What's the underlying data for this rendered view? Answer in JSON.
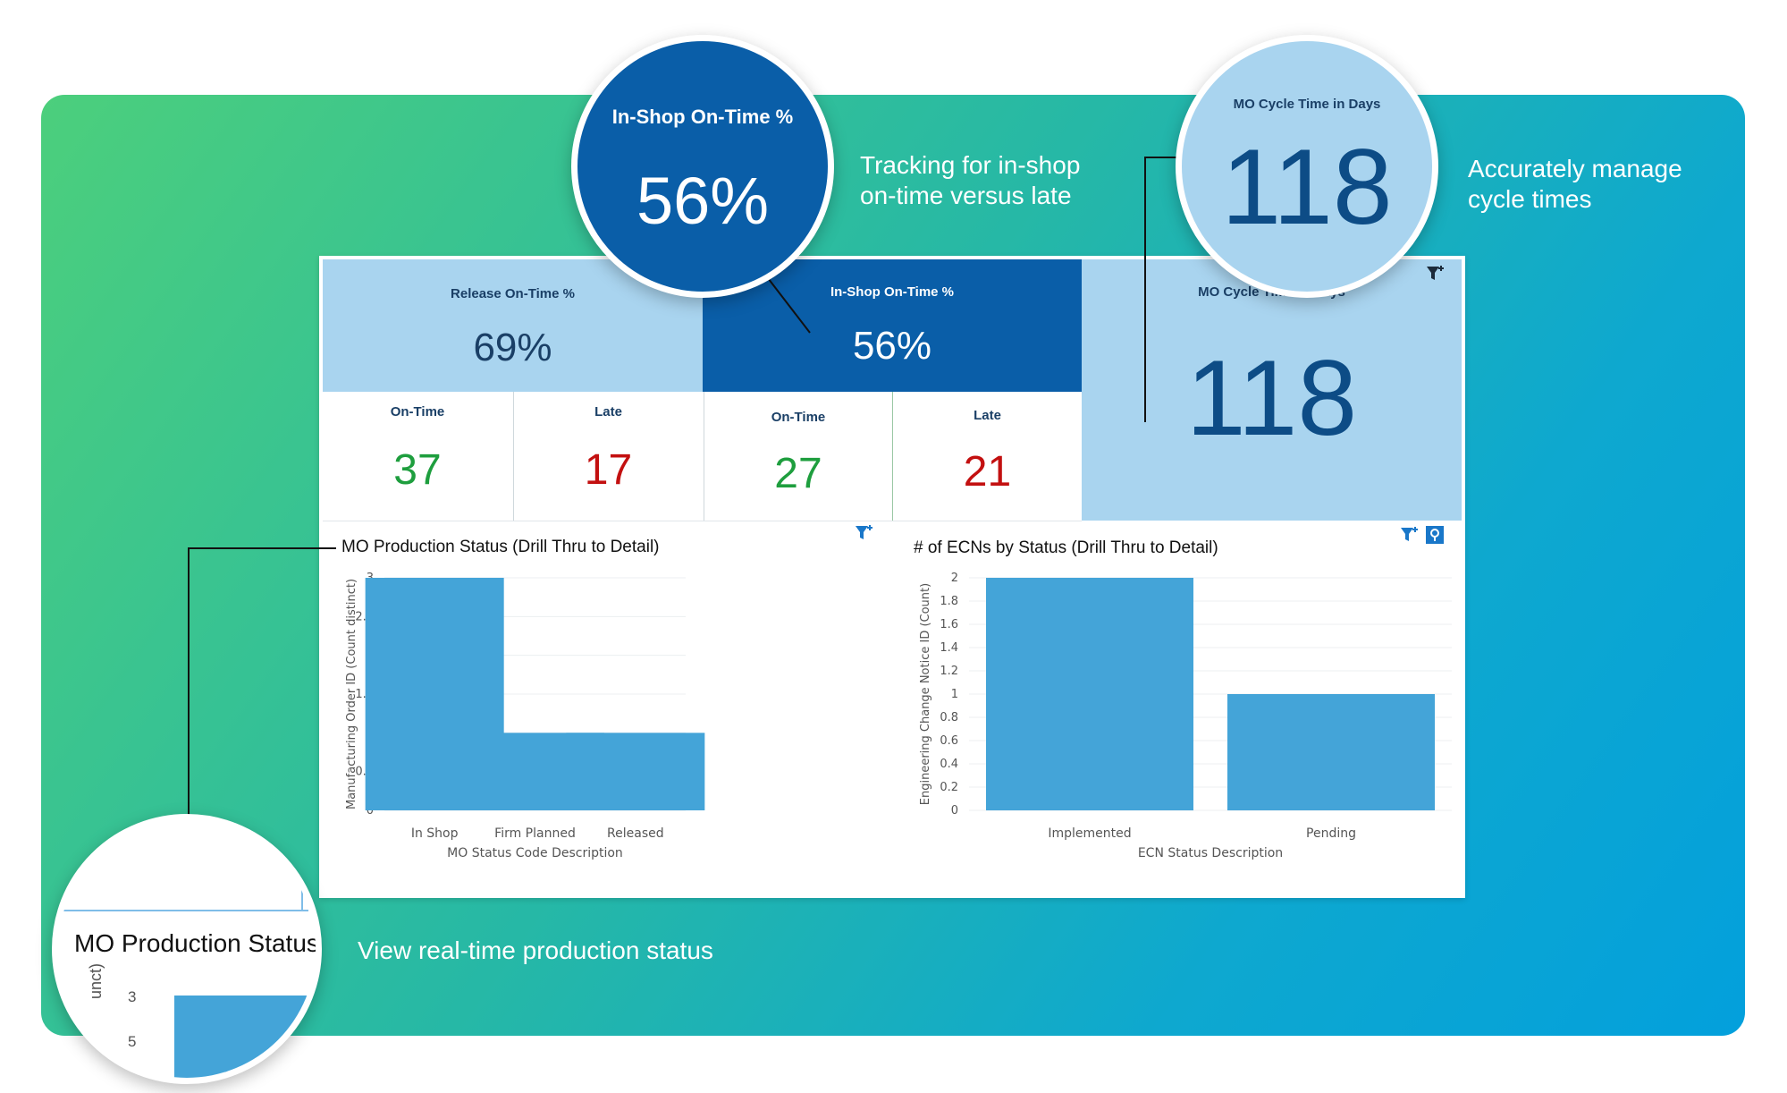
{
  "callouts": {
    "inshop_text_line1": "Tracking for in-shop",
    "inshop_text_line2": "on-time versus late",
    "cycle_text_line1": "Accurately manage",
    "cycle_text_line2": "cycle times",
    "status_text": "View real-time production status"
  },
  "bubbles": {
    "inshop": {
      "title": "In-Shop On-Time %",
      "value": "56%"
    },
    "cycle": {
      "title": "MO Cycle Time in Days",
      "value": "118"
    },
    "status": {
      "title": "MO Production Status",
      "axis_partial": "unct)",
      "tick_3": "3",
      "tick_25": "5"
    }
  },
  "kpis": {
    "release": {
      "title": "Release On-Time %",
      "value": "69%",
      "ontime_label": "On-Time",
      "ontime_value": "37",
      "late_label": "Late",
      "late_value": "17"
    },
    "inshop": {
      "title": "In-Shop On-Time %",
      "value": "56%",
      "ontime_label": "On-Time",
      "ontime_value": "27",
      "late_label": "Late",
      "late_value": "21"
    },
    "cycle": {
      "title": "MO Cycle Time in Days",
      "value": "118"
    }
  },
  "colors": {
    "light_tile": "#a9d4ef",
    "dark_tile": "#0a5ea8",
    "bar": "#44a4d8",
    "ontime": "#1e9e3e",
    "late": "#c31010"
  },
  "icons": {
    "filter": "filter-icon",
    "pin": "pin-icon"
  },
  "chart_data": [
    {
      "type": "bar",
      "title": "MO Production Status (Drill Thru to Detail)",
      "xlabel": "MO Status Code Description",
      "ylabel": "Manufacturing Order ID (Count distinct)",
      "categories": [
        "In Shop",
        "Firm Planned",
        "Released"
      ],
      "values": [
        3,
        1,
        1
      ],
      "ylim": [
        0,
        3
      ],
      "yticks": [
        "0",
        "0.5",
        "1",
        "1.5",
        "2",
        "2.5",
        "3"
      ],
      "grid": true
    },
    {
      "type": "bar",
      "title": "# of ECNs by Status (Drill Thru to Detail)",
      "xlabel": "ECN Status Description",
      "ylabel": "Engineering Change Notice ID (Count)",
      "categories": [
        "Implemented",
        "Pending"
      ],
      "values": [
        2,
        1
      ],
      "ylim": [
        0,
        2
      ],
      "yticks": [
        "0",
        "0.2",
        "0.4",
        "0.6",
        "0.8",
        "1",
        "1.2",
        "1.4",
        "1.6",
        "1.8",
        "2"
      ],
      "grid": true
    }
  ]
}
